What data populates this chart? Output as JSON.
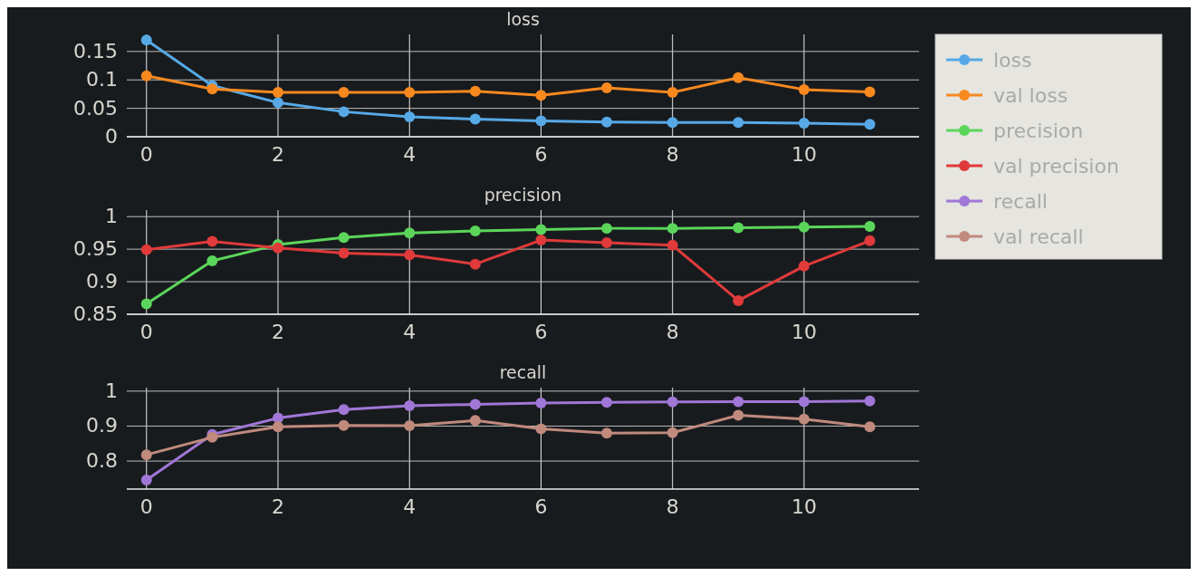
{
  "chart_data": [
    {
      "type": "line",
      "title": "loss",
      "x": [
        0,
        1,
        2,
        3,
        4,
        5,
        6,
        7,
        8,
        9,
        10,
        11
      ],
      "xlim": [
        -0.3,
        11.75
      ],
      "xticks": [
        0,
        2,
        4,
        6,
        8,
        10
      ],
      "ylim": [
        0,
        0.18
      ],
      "yticks": [
        0,
        0.05,
        0.1,
        0.15
      ],
      "grid": true,
      "marker": "circle",
      "legend": "right",
      "series": [
        {
          "name": "loss",
          "color": "#56a9e6",
          "values": [
            0.17,
            0.09,
            0.06,
            0.044,
            0.035,
            0.031,
            0.028,
            0.026,
            0.025,
            0.025,
            0.024,
            0.022
          ]
        },
        {
          "name": "val loss",
          "color": "#f7891f",
          "values": [
            0.107,
            0.084,
            0.078,
            0.078,
            0.078,
            0.08,
            0.073,
            0.086,
            0.078,
            0.104,
            0.083,
            0.079
          ]
        }
      ]
    },
    {
      "type": "line",
      "title": "precision",
      "x": [
        0,
        1,
        2,
        3,
        4,
        5,
        6,
        7,
        8,
        9,
        10,
        11
      ],
      "xlim": [
        -0.3,
        11.75
      ],
      "xticks": [
        0,
        2,
        4,
        6,
        8,
        10
      ],
      "ylim": [
        0.85,
        1.01
      ],
      "yticks": [
        0.85,
        0.9,
        0.95,
        1
      ],
      "grid": true,
      "marker": "circle",
      "legend": "right",
      "series": [
        {
          "name": "precision",
          "color": "#5bd65b",
          "values": [
            0.866,
            0.932,
            0.957,
            0.968,
            0.975,
            0.978,
            0.98,
            0.982,
            0.982,
            0.983,
            0.984,
            0.985
          ]
        },
        {
          "name": "val precision",
          "color": "#e03a3a",
          "values": [
            0.949,
            0.962,
            0.952,
            0.944,
            0.941,
            0.927,
            0.964,
            0.96,
            0.956,
            0.871,
            0.924,
            0.963
          ]
        }
      ]
    },
    {
      "type": "line",
      "title": "recall",
      "x": [
        0,
        1,
        2,
        3,
        4,
        5,
        6,
        7,
        8,
        9,
        10,
        11
      ],
      "xlim": [
        -0.3,
        11.75
      ],
      "xticks": [
        0,
        2,
        4,
        6,
        8,
        10
      ],
      "ylim": [
        0.72,
        1.01
      ],
      "yticks": [
        0.8,
        0.9,
        1
      ],
      "grid": true,
      "marker": "circle",
      "legend": "right",
      "series": [
        {
          "name": "recall",
          "color": "#a077d6",
          "values": [
            0.746,
            0.876,
            0.923,
            0.947,
            0.958,
            0.962,
            0.966,
            0.968,
            0.969,
            0.97,
            0.97,
            0.972
          ]
        },
        {
          "name": "val recall",
          "color": "#c08a7c",
          "values": [
            0.818,
            0.868,
            0.898,
            0.902,
            0.901,
            0.916,
            0.892,
            0.88,
            0.881,
            0.931,
            0.92,
            0.898
          ]
        }
      ]
    }
  ]
}
